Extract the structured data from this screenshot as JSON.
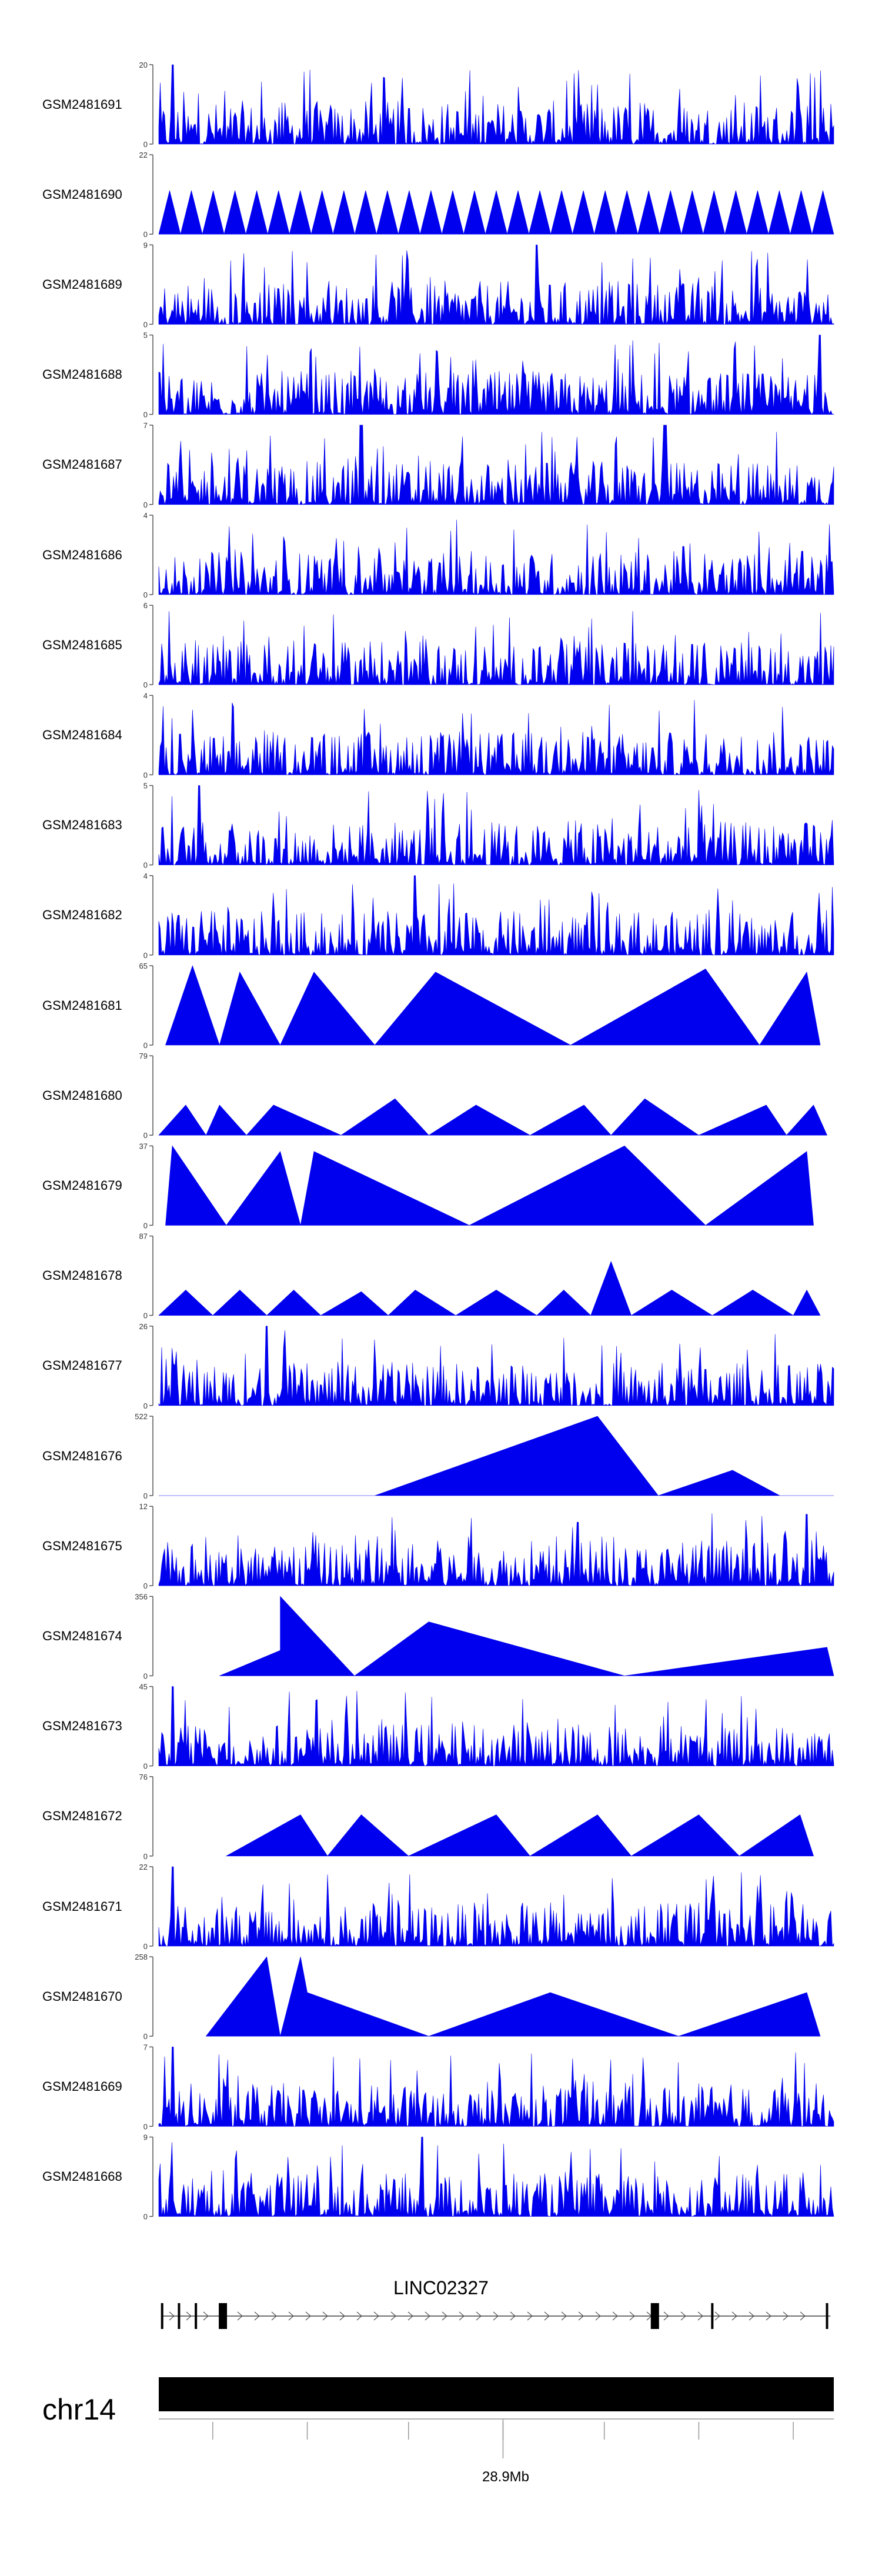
{
  "chart_data": {
    "type": "area",
    "description": "Coverage tracks (genome browser) over the LINC02327 locus on chr14",
    "fill_color": "#0000ee",
    "tracks": [
      {
        "name": "GSM2481691",
        "ymax": 20,
        "shape": "dense",
        "peaks": [
          [
            0.02,
            1.0
          ],
          [
            0.37,
            0.45
          ]
        ]
      },
      {
        "name": "GSM2481690",
        "ymax": 22,
        "shape": "sawtooth",
        "peaks": [
          [
            0.37,
            1.0
          ],
          [
            0.93,
            1.0
          ],
          [
            0.99,
            1.0
          ]
        ]
      },
      {
        "name": "GSM2481689",
        "ymax": 9,
        "shape": "dense",
        "peaks": [
          [
            0.56,
            1.0
          ]
        ]
      },
      {
        "name": "GSM2481688",
        "ymax": 5,
        "shape": "dense",
        "peaks": [
          [
            0.98,
            1.0
          ]
        ]
      },
      {
        "name": "GSM2481687",
        "ymax": 7,
        "shape": "dense",
        "peaks": [
          [
            0.3,
            1.0
          ],
          [
            0.75,
            1.0
          ]
        ]
      },
      {
        "name": "GSM2481686",
        "ymax": 4,
        "shape": "dense",
        "peaks": []
      },
      {
        "name": "GSM2481685",
        "ymax": 6,
        "shape": "dense",
        "peaks": []
      },
      {
        "name": "GSM2481684",
        "ymax": 4,
        "shape": "dense",
        "peaks": []
      },
      {
        "name": "GSM2481683",
        "ymax": 5,
        "shape": "dense",
        "peaks": [
          [
            0.06,
            1.0
          ]
        ]
      },
      {
        "name": "GSM2481682",
        "ymax": 4,
        "shape": "dense",
        "peaks": [
          [
            0.38,
            1.0
          ]
        ]
      },
      {
        "name": "GSM2481681",
        "ymax": 65,
        "shape": "triangles",
        "pts": [
          [
            0.01,
            0
          ],
          [
            0.05,
            1.0
          ],
          [
            0.09,
            0
          ],
          [
            0.12,
            0.92
          ],
          [
            0.18,
            0
          ],
          [
            0.23,
            0.92
          ],
          [
            0.32,
            0
          ],
          [
            0.41,
            0.92
          ],
          [
            0.61,
            0
          ],
          [
            0.81,
            0.96
          ],
          [
            0.89,
            0
          ],
          [
            0.96,
            0.92
          ],
          [
            0.98,
            0
          ]
        ]
      },
      {
        "name": "GSM2481680",
        "ymax": 79,
        "shape": "triangles",
        "pts": [
          [
            0.0,
            0
          ],
          [
            0.04,
            0.38
          ],
          [
            0.07,
            0
          ],
          [
            0.09,
            0.38
          ],
          [
            0.13,
            0
          ],
          [
            0.17,
            0.38
          ],
          [
            0.27,
            0
          ],
          [
            0.35,
            0.46
          ],
          [
            0.4,
            0
          ],
          [
            0.47,
            0.38
          ],
          [
            0.55,
            0
          ],
          [
            0.63,
            0.38
          ],
          [
            0.67,
            0
          ],
          [
            0.72,
            0.46
          ],
          [
            0.8,
            0
          ],
          [
            0.9,
            0.38
          ],
          [
            0.93,
            0
          ],
          [
            0.97,
            0.38
          ],
          [
            0.99,
            0
          ]
        ]
      },
      {
        "name": "GSM2481679",
        "ymax": 37,
        "shape": "triangles",
        "pts": [
          [
            0.01,
            0
          ],
          [
            0.02,
            1.0
          ],
          [
            0.1,
            0
          ],
          [
            0.18,
            0.93
          ],
          [
            0.21,
            0
          ],
          [
            0.23,
            0.93
          ],
          [
            0.46,
            0
          ],
          [
            0.69,
            1.0
          ],
          [
            0.81,
            0
          ],
          [
            0.96,
            0.93
          ],
          [
            0.97,
            0
          ]
        ]
      },
      {
        "name": "GSM2481678",
        "ymax": 87,
        "shape": "triangles",
        "pts": [
          [
            0.0,
            0
          ],
          [
            0.04,
            0.32
          ],
          [
            0.08,
            0
          ],
          [
            0.12,
            0.32
          ],
          [
            0.16,
            0
          ],
          [
            0.2,
            0.32
          ],
          [
            0.24,
            0
          ],
          [
            0.3,
            0.3
          ],
          [
            0.34,
            0
          ],
          [
            0.38,
            0.32
          ],
          [
            0.44,
            0
          ],
          [
            0.5,
            0.32
          ],
          [
            0.56,
            0
          ],
          [
            0.6,
            0.32
          ],
          [
            0.64,
            0
          ],
          [
            0.67,
            0.68
          ],
          [
            0.7,
            0
          ],
          [
            0.76,
            0.32
          ],
          [
            0.82,
            0
          ],
          [
            0.88,
            0.32
          ],
          [
            0.94,
            0
          ],
          [
            0.96,
            0.32
          ],
          [
            0.98,
            0
          ]
        ]
      },
      {
        "name": "GSM2481677",
        "ymax": 26,
        "shape": "dense",
        "peaks": [
          [
            0.16,
            1.0
          ],
          [
            0.02,
            0.3
          ]
        ]
      },
      {
        "name": "GSM2481676",
        "ymax": 522,
        "shape": "triangles",
        "pts": [
          [
            0.0,
            0
          ],
          [
            0.32,
            0
          ],
          [
            0.65,
            1.0
          ],
          [
            0.74,
            0
          ],
          [
            0.85,
            0.32
          ],
          [
            0.92,
            0
          ],
          [
            1.0,
            0
          ]
        ]
      },
      {
        "name": "GSM2481675",
        "ymax": 12,
        "shape": "dense",
        "peaks": [
          [
            0.62,
            0.8
          ],
          [
            0.96,
            0.9
          ]
        ]
      },
      {
        "name": "GSM2481674",
        "ymax": 356,
        "shape": "triangles",
        "pts": [
          [
            0.09,
            0
          ],
          [
            0.18,
            0.32
          ],
          [
            0.18,
            1.0
          ],
          [
            0.29,
            0
          ],
          [
            0.4,
            0.68
          ],
          [
            0.69,
            0
          ],
          [
            0.99,
            0.36
          ],
          [
            1.0,
            0
          ]
        ]
      },
      {
        "name": "GSM2481673",
        "ymax": 45,
        "shape": "dense",
        "peaks": [
          [
            0.02,
            1.0
          ]
        ]
      },
      {
        "name": "GSM2481672",
        "ymax": 76,
        "shape": "triangles",
        "pts": [
          [
            0.1,
            0
          ],
          [
            0.21,
            0.52
          ],
          [
            0.25,
            0
          ],
          [
            0.3,
            0.52
          ],
          [
            0.37,
            0
          ],
          [
            0.5,
            0.52
          ],
          [
            0.55,
            0
          ],
          [
            0.65,
            0.52
          ],
          [
            0.7,
            0
          ],
          [
            0.8,
            0.52
          ],
          [
            0.86,
            0
          ],
          [
            0.95,
            0.52
          ],
          [
            0.97,
            0
          ]
        ]
      },
      {
        "name": "GSM2481671",
        "ymax": 22,
        "shape": "dense",
        "peaks": [
          [
            0.02,
            1.0
          ]
        ]
      },
      {
        "name": "GSM2481670",
        "ymax": 258,
        "shape": "triangles",
        "pts": [
          [
            0.07,
            0
          ],
          [
            0.16,
            1.0
          ],
          [
            0.18,
            0
          ],
          [
            0.21,
            1.0
          ],
          [
            0.22,
            0.55
          ],
          [
            0.4,
            0
          ],
          [
            0.58,
            0.55
          ],
          [
            0.77,
            0
          ],
          [
            0.96,
            0.55
          ],
          [
            0.98,
            0
          ]
        ]
      },
      {
        "name": "GSM2481669",
        "ymax": 7,
        "shape": "dense",
        "peaks": [
          [
            0.02,
            1.0
          ]
        ]
      },
      {
        "name": "GSM2481668",
        "ymax": 9,
        "shape": "dense",
        "peaks": [
          [
            0.39,
            1.0
          ]
        ]
      }
    ],
    "gene": {
      "name": "LINC02327",
      "strand": "+",
      "exons": [
        0.005,
        0.03,
        0.055,
        0.095,
        0.735,
        0.82,
        0.99
      ],
      "thick_exons": [
        0.095,
        0.735
      ],
      "gene_start": 0.005,
      "gene_end": 0.995
    },
    "ideogram": {
      "chromosome": "chr14",
      "axis_label": "28.9Mb",
      "tick_positions": [
        0.08,
        0.22,
        0.37,
        0.51,
        0.66,
        0.8,
        0.94
      ],
      "labeled_tick": 0.51
    }
  }
}
